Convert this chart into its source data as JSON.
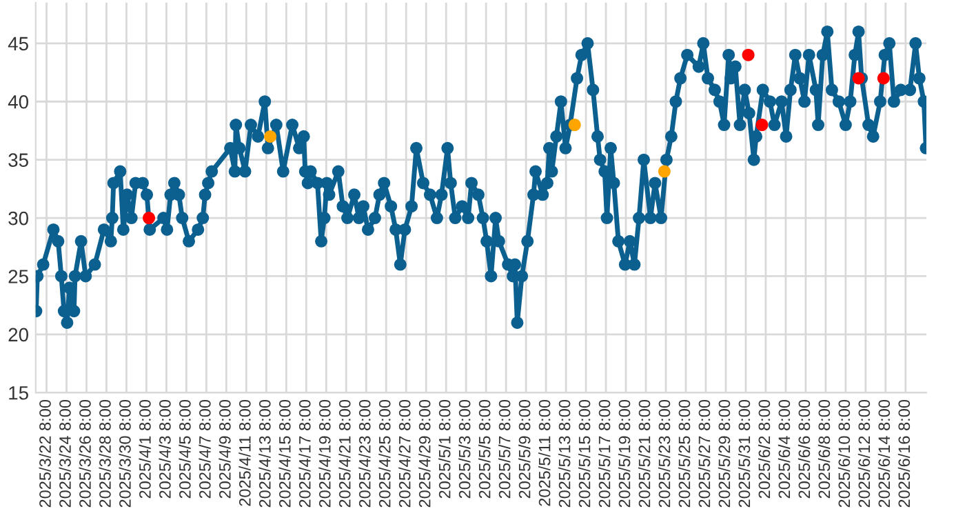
{
  "chart_data": {
    "type": "line",
    "marker": "circle",
    "line_style": "solid",
    "grid": true,
    "legend": false,
    "ylim": [
      15,
      48.5
    ],
    "yticks": [
      15,
      20,
      25,
      30,
      35,
      40,
      45
    ],
    "xlim": [
      "2025-03-21T06:00",
      "2025-06-18T10:00"
    ],
    "xticks": [
      {
        "value": "2025-03-22T08:00",
        "label": "2025/3/22 8:00"
      },
      {
        "value": "2025-03-24T08:00",
        "label": "2025/3/24 8:00"
      },
      {
        "value": "2025-03-26T08:00",
        "label": "2025/3/26 8:00"
      },
      {
        "value": "2025-03-28T08:00",
        "label": "2025/3/28 8:00"
      },
      {
        "value": "2025-03-30T08:00",
        "label": "2025/3/30 8:00"
      },
      {
        "value": "2025-04-01T08:00",
        "label": "2025/4/1 8:00"
      },
      {
        "value": "2025-04-03T08:00",
        "label": "2025/4/3 8:00"
      },
      {
        "value": "2025-04-05T08:00",
        "label": "2025/4/5 8:00"
      },
      {
        "value": "2025-04-07T08:00",
        "label": "2025/4/7 8:00"
      },
      {
        "value": "2025-04-09T08:00",
        "label": "2025/4/9 8:00"
      },
      {
        "value": "2025-04-11T08:00",
        "label": "2025/4/11 8:00"
      },
      {
        "value": "2025-04-13T08:00",
        "label": "2025/4/13 8:00"
      },
      {
        "value": "2025-04-15T08:00",
        "label": "2025/4/15 8:00"
      },
      {
        "value": "2025-04-17T08:00",
        "label": "2025/4/17 8:00"
      },
      {
        "value": "2025-04-19T08:00",
        "label": "2025/4/19 8:00"
      },
      {
        "value": "2025-04-21T08:00",
        "label": "2025/4/21 8:00"
      },
      {
        "value": "2025-04-23T08:00",
        "label": "2025/4/23 8:00"
      },
      {
        "value": "2025-04-25T08:00",
        "label": "2025/4/25 8:00"
      },
      {
        "value": "2025-04-27T08:00",
        "label": "2025/4/27 8:00"
      },
      {
        "value": "2025-04-29T08:00",
        "label": "2025/4/29 8:00"
      },
      {
        "value": "2025-05-01T08:00",
        "label": "2025/5/1 8:00"
      },
      {
        "value": "2025-05-03T08:00",
        "label": "2025/5/3 8:00"
      },
      {
        "value": "2025-05-05T08:00",
        "label": "2025/5/5 8:00"
      },
      {
        "value": "2025-05-07T08:00",
        "label": "2025/5/7 8:00"
      },
      {
        "value": "2025-05-09T08:00",
        "label": "2025/5/9 8:00"
      },
      {
        "value": "2025-05-11T08:00",
        "label": "2025/5/11 8:00"
      },
      {
        "value": "2025-05-13T08:00",
        "label": "2025/5/13 8:00"
      },
      {
        "value": "2025-05-15T08:00",
        "label": "2025/5/15 8:00"
      },
      {
        "value": "2025-05-17T08:00",
        "label": "2025/5/17 8:00"
      },
      {
        "value": "2025-05-19T08:00",
        "label": "2025/5/19 8:00"
      },
      {
        "value": "2025-05-21T08:00",
        "label": "2025/5/21 8:00"
      },
      {
        "value": "2025-05-23T08:00",
        "label": "2025/5/23 8:00"
      },
      {
        "value": "2025-05-25T08:00",
        "label": "2025/5/25 8:00"
      },
      {
        "value": "2025-05-27T08:00",
        "label": "2025/5/27 8:00"
      },
      {
        "value": "2025-05-29T08:00",
        "label": "2025/5/29 8:00"
      },
      {
        "value": "2025-05-31T08:00",
        "label": "2025/5/31 8:00"
      },
      {
        "value": "2025-06-02T08:00",
        "label": "2025/6/2 8:00"
      },
      {
        "value": "2025-06-04T08:00",
        "label": "2025/6/4 8:00"
      },
      {
        "value": "2025-06-06T08:00",
        "label": "2025/6/6 8:00"
      },
      {
        "value": "2025-06-08T08:00",
        "label": "2025/6/8 8:00"
      },
      {
        "value": "2025-06-10T08:00",
        "label": "2025/6/10 8:00"
      },
      {
        "value": "2025-06-12T08:00",
        "label": "2025/6/12 8:00"
      },
      {
        "value": "2025-06-14T08:00",
        "label": "2025/6/14 8:00"
      },
      {
        "value": "2025-06-16T08:00",
        "label": "2025/6/16 8:00"
      }
    ],
    "series": [
      {
        "color": "#0b6090",
        "x": [
          "2025-03-21T07:00",
          "2025-03-21T10:00",
          "2025-03-22T00:00",
          "2025-03-23T00:30",
          "2025-03-23T12:00",
          "2025-03-23T19:30",
          "2025-03-24T02:00",
          "2025-03-24T09:30",
          "2025-03-24T15:00",
          "2025-03-25T02:00",
          "2025-03-25T04:30",
          "2025-03-25T19:00",
          "2025-03-26T06:00",
          "2025-03-27T04:00",
          "2025-03-28T02:00",
          "2025-03-28T18:30",
          "2025-03-28T22:00",
          "2025-03-29T01:00",
          "2025-03-29T17:00",
          "2025-03-30T00:30",
          "2025-03-30T09:30",
          "2025-03-30T20:00",
          "2025-03-31T06:00",
          "2025-03-31T23:00",
          "2025-04-01T09:00",
          "2025-04-01T16:00",
          "2025-04-03T01:00",
          "2025-04-03T09:30",
          "2025-04-03T18:00",
          "2025-04-04T03:00",
          "2025-04-04T14:00",
          "2025-04-04T22:00",
          "2025-04-05T14:00",
          "2025-04-06T12:00",
          "2025-04-06T23:30",
          "2025-04-07T05:00",
          "2025-04-07T12:30",
          "2025-04-07T21:00",
          "2025-04-09T17:30",
          "2025-04-10T04:30",
          "2025-04-10T07:00",
          "2025-04-10T15:30",
          "2025-04-11T05:00",
          "2025-04-11T19:00",
          "2025-04-12T12:00",
          "2025-04-13T04:30",
          "2025-04-13T12:00",
          "2025-04-14T08:00",
          "2025-04-15T00:30",
          "2025-04-15T22:30",
          "2025-04-16T15:00",
          "2025-04-17T02:00",
          "2025-04-17T05:30",
          "2025-04-17T12:00",
          "2025-04-17T18:30",
          "2025-04-18T11:00",
          "2025-04-18T20:00",
          "2025-04-19T03:30",
          "2025-04-19T09:30",
          "2025-04-19T15:00",
          "2025-04-20T13:00",
          "2025-04-21T00:00",
          "2025-04-21T11:00",
          "2025-04-22T03:30",
          "2025-04-22T14:30",
          "2025-04-23T01:00",
          "2025-04-23T12:30",
          "2025-04-24T05:00",
          "2025-04-24T16:00",
          "2025-04-25T03:00",
          "2025-04-25T19:30",
          "2025-04-26T07:00",
          "2025-04-26T18:00",
          "2025-04-27T05:00",
          "2025-04-27T21:00",
          "2025-04-28T08:30",
          "2025-04-29T01:00",
          "2025-04-29T17:30",
          "2025-04-30T10:00",
          "2025-04-30T21:00",
          "2025-05-01T11:30",
          "2025-05-01T19:00",
          "2025-05-02T06:00",
          "2025-05-02T22:30",
          "2025-05-03T13:00",
          "2025-05-03T21:00",
          "2025-05-04T13:30",
          "2025-05-05T00:30",
          "2025-05-05T09:30",
          "2025-05-05T20:00",
          "2025-05-06T07:00",
          "2025-05-06T15:00",
          "2025-05-07T13:00",
          "2025-05-08T00:30",
          "2025-05-08T05:30",
          "2025-05-08T11:00",
          "2025-05-08T22:00",
          "2025-05-09T11:30",
          "2025-05-10T02:00",
          "2025-05-10T07:00",
          "2025-05-11T00:00",
          "2025-05-11T11:00",
          "2025-05-11T16:00",
          "2025-05-11T22:00",
          "2025-05-12T09:00",
          "2025-05-12T20:00",
          "2025-05-13T07:00",
          "2025-05-13T18:00",
          "2025-05-14T10:30",
          "2025-05-14T21:30",
          "2025-05-15T12:00",
          "2025-05-16T01:00",
          "2025-05-16T12:00",
          "2025-05-16T18:00",
          "2025-05-17T05:00",
          "2025-05-17T10:30",
          "2025-05-17T19:30",
          "2025-05-18T03:00",
          "2025-05-18T14:00",
          "2025-05-19T06:00",
          "2025-05-19T17:30",
          "2025-05-20T04:30",
          "2025-05-20T15:30",
          "2025-05-21T03:00",
          "2025-05-21T19:00",
          "2025-05-22T06:00",
          "2025-05-22T20:30",
          "2025-05-23T09:30",
          "2025-05-23T21:00",
          "2025-05-24T08:00",
          "2025-05-24T19:00",
          "2025-05-25T11:30",
          "2025-05-26T15:00",
          "2025-05-27T02:00",
          "2025-05-27T13:00",
          "2025-05-28T05:30",
          "2025-05-28T17:00",
          "2025-05-29T04:00",
          "2025-05-29T15:00",
          "2025-05-29T20:00",
          "2025-05-30T07:00",
          "2025-05-30T18:00",
          "2025-05-31T05:30",
          "2025-05-31T16:00",
          "2025-06-01T03:30",
          "2025-06-01T09:00",
          "2025-06-02T01:00",
          "2025-06-02T18:00",
          "2025-06-03T05:00",
          "2025-06-03T22:00",
          "2025-06-04T09:00",
          "2025-06-04T19:30",
          "2025-06-05T07:00",
          "2025-06-05T18:00",
          "2025-06-06T05:00",
          "2025-06-06T16:00",
          "2025-06-07T08:30",
          "2025-06-07T14:00",
          "2025-06-08T01:00",
          "2025-06-08T12:00",
          "2025-06-08T23:00",
          "2025-06-09T15:30",
          "2025-06-10T08:00",
          "2025-06-10T19:00",
          "2025-06-11T06:00",
          "2025-06-11T15:00",
          "2025-06-11T22:30",
          "2025-06-12T15:00",
          "2025-06-13T02:00",
          "2025-06-13T19:00",
          "2025-06-14T06:00",
          "2025-06-14T17:00",
          "2025-06-15T04:00",
          "2025-06-15T20:30",
          "2025-06-16T18:30",
          "2025-06-17T08:00",
          "2025-06-17T17:00",
          "2025-06-18T04:00",
          "2025-06-18T09:00"
        ],
        "values": [
          22,
          25,
          26,
          29,
          28,
          25,
          22,
          21,
          24,
          22,
          25,
          28,
          25,
          26,
          29,
          28,
          30,
          33,
          34,
          29,
          32,
          30,
          33,
          33,
          32,
          29,
          30,
          29,
          32,
          33,
          32,
          30,
          28,
          29,
          30,
          32,
          33,
          34,
          36,
          34,
          38,
          36,
          34,
          38,
          37,
          40,
          36,
          38,
          34,
          38,
          36,
          37,
          34,
          33,
          34,
          33,
          28,
          30,
          33,
          32,
          34,
          31,
          30,
          32,
          30,
          31,
          29,
          30,
          32,
          33,
          31,
          29,
          26,
          29,
          31,
          36,
          33,
          32,
          30,
          32,
          36,
          33,
          30,
          31,
          30,
          33,
          32,
          30,
          28,
          25,
          30,
          28,
          26,
          25,
          26,
          21,
          25,
          28,
          32,
          34,
          32,
          33,
          36,
          34,
          37,
          40,
          36,
          38,
          42,
          44,
          45,
          41,
          37,
          35,
          34,
          30,
          36,
          33,
          28,
          26,
          28,
          26,
          30,
          35,
          30,
          33,
          30,
          35,
          37,
          40,
          42,
          44,
          43,
          45,
          42,
          41,
          40,
          38,
          44,
          42,
          43,
          38,
          41,
          39,
          35,
          37,
          41,
          40,
          38,
          40,
          37,
          41,
          44,
          42,
          40,
          44,
          41,
          38,
          44,
          46,
          41,
          40,
          38,
          40,
          44,
          46,
          42,
          38,
          37,
          40,
          44,
          45,
          40,
          41,
          41,
          45,
          42,
          40,
          36
        ]
      },
      {
        "type": "scatter",
        "color": "#ff0000",
        "x": [
          "2025-04-01T14:00",
          "2025-05-31T14:00",
          "2025-06-01T23:00",
          "2025-06-11T15:00",
          "2025-06-14T03:00"
        ],
        "values": [
          30,
          44,
          38,
          42,
          42
        ]
      },
      {
        "type": "scatter",
        "color": "#ffa500",
        "x": [
          "2025-04-13T17:30",
          "2025-05-14T05:00",
          "2025-05-23T04:30"
        ],
        "values": [
          37,
          38,
          34
        ]
      }
    ]
  }
}
